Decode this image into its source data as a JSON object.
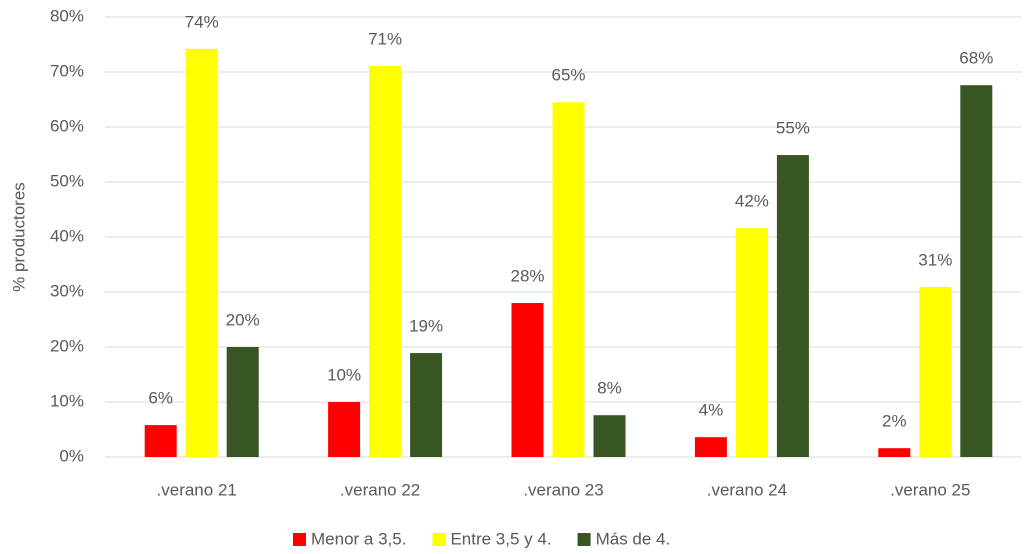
{
  "chart_data": {
    "type": "bar",
    "y_label": "% productores",
    "categories": [
      ".verano 21",
      ".verano 22",
      ".verano 23",
      ".verano 24",
      ".verano 25"
    ],
    "series": [
      {
        "name": "Menor a 3,5.",
        "color": "#ff0000",
        "values": [
          5.8,
          10.0,
          28.0,
          3.6,
          1.6
        ],
        "value_labels": [
          "6%",
          "10%",
          "28%",
          "4%",
          "2%"
        ]
      },
      {
        "name": "Entre 3,5 y 4.",
        "color": "#ffff00",
        "values": [
          74.2,
          71.1,
          64.5,
          41.6,
          30.9
        ],
        "value_labels": [
          "74%",
          "71%",
          "65%",
          "42%",
          "31%"
        ]
      },
      {
        "name": "Más de 4.",
        "color": "#375623",
        "values": [
          20.0,
          18.9,
          7.6,
          54.9,
          67.6
        ],
        "value_labels": [
          "20%",
          "19%",
          "8%",
          "55%",
          "68%"
        ]
      }
    ],
    "ylim": [
      0,
      80
    ],
    "yticks": [
      {
        "value": 0,
        "label": "0%"
      },
      {
        "value": 10,
        "label": "10%"
      },
      {
        "value": 20,
        "label": "20%"
      },
      {
        "value": 30,
        "label": "30%"
      },
      {
        "value": 40,
        "label": "40%"
      },
      {
        "value": 50,
        "label": "50%"
      },
      {
        "value": 60,
        "label": "60%"
      },
      {
        "value": 70,
        "label": "70%"
      },
      {
        "value": 80,
        "label": "80%"
      }
    ],
    "grid": true,
    "legend": "bottom"
  }
}
